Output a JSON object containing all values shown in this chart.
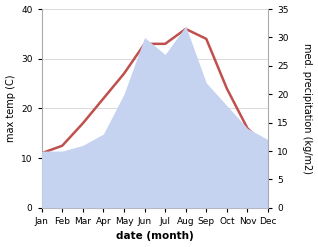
{
  "months": [
    "Jan",
    "Feb",
    "Mar",
    "Apr",
    "May",
    "Jun",
    "Jul",
    "Aug",
    "Sep",
    "Oct",
    "Nov",
    "Dec"
  ],
  "temperature": [
    11,
    12.5,
    17,
    22,
    27,
    33,
    33,
    36,
    34,
    24,
    16,
    12
  ],
  "precipitation": [
    10,
    10,
    11,
    13,
    20,
    30,
    27,
    32,
    22,
    18,
    14,
    12
  ],
  "temp_color": "#c0504d",
  "precip_color": "#c5d3f0",
  "temp_ylim": [
    0,
    40
  ],
  "temp_yticks": [
    0,
    10,
    20,
    30,
    40
  ],
  "precip_ylim": [
    0,
    35
  ],
  "precip_yticks": [
    0,
    5,
    10,
    15,
    20,
    25,
    30,
    35
  ],
  "xlabel": "date (month)",
  "ylabel_left": "max temp (C)",
  "ylabel_right": "med. precipitation (kg/m2)",
  "bg_color": "#ffffff",
  "grid_color": "#cccccc",
  "tick_fontsize": 6.5,
  "label_fontsize": 7,
  "xlabel_fontsize": 7.5,
  "line_width": 1.8
}
